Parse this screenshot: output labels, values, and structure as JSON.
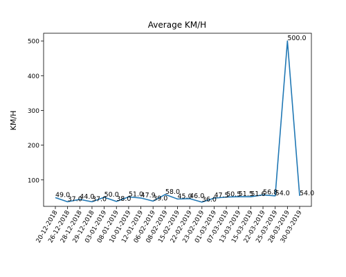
{
  "chart_data": {
    "type": "line",
    "title": "Average KM/H",
    "xlabel": "",
    "ylabel": "KM/H",
    "categories": [
      "20-12-2018",
      "26-12-2018",
      "28-12-2018",
      "29-12-2018",
      "03-01-2019",
      "08-01-2019",
      "10-01-2019",
      "12-01-2019",
      "06-02-2019",
      "08-02-2019",
      "15-02-2019",
      "22-02-2019",
      "23-02-2019",
      "01-03-2019",
      "07-03-2019",
      "13-03-2019",
      "15-03-2019",
      "22-03-2019",
      "25-03-2019",
      "28-03-2019",
      "30-03-2019"
    ],
    "series": [
      {
        "values": [
          49.0,
          37.0,
          44.0,
          37.0,
          50.0,
          38.0,
          51.0,
          47.9,
          39.0,
          58.0,
          45.0,
          46.0,
          36.0,
          47.5,
          50.5,
          51.5,
          51.6,
          56.8,
          54.0,
          500.0,
          54.0
        ],
        "labels": [
          "49.0",
          "37.0",
          "44.0",
          "37.0",
          "50.0",
          "38.0",
          "51.0",
          "47.9",
          "39.0",
          "58.0",
          "45.0",
          "46.0",
          "36.0",
          "47.5",
          "50.5",
          "51.5",
          "51.6",
          "56.8",
          "54.0",
          "500.0",
          "54.0"
        ],
        "color": "#1f77b4"
      }
    ],
    "yticks": [
      100,
      200,
      300,
      400,
      500
    ],
    "ylim": [
      23.8,
      522.2
    ],
    "grid": false,
    "legend": "none"
  }
}
